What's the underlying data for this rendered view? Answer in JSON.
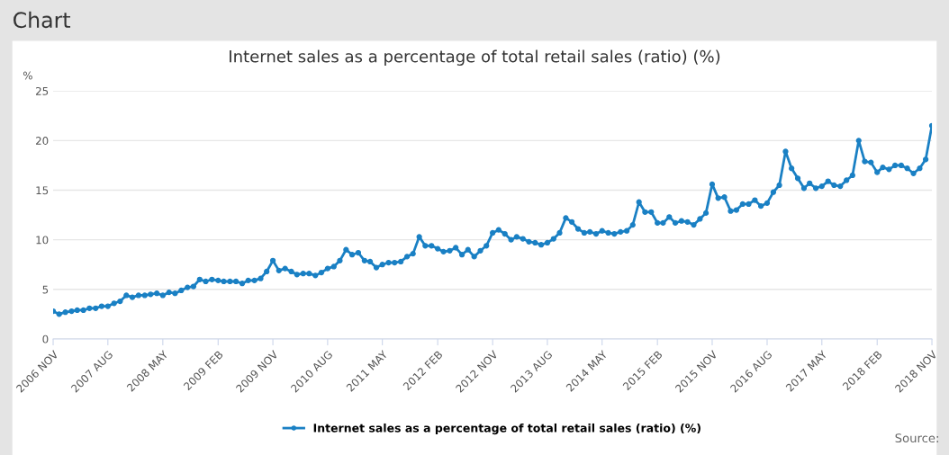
{
  "chart_data": {
    "type": "line",
    "title": "Internet sales as a percentage of total retail sales (ratio) (%)",
    "ylabel": "%",
    "annotations": [
      "Chart",
      "Source:"
    ],
    "x": [
      "2006-11",
      "2006-12",
      "2007-01",
      "2007-02",
      "2007-03",
      "2007-04",
      "2007-05",
      "2007-06",
      "2007-07",
      "2007-08",
      "2007-09",
      "2007-10",
      "2007-11",
      "2007-12",
      "2008-01",
      "2008-02",
      "2008-03",
      "2008-04",
      "2008-05",
      "2008-06",
      "2008-07",
      "2008-08",
      "2008-09",
      "2008-10",
      "2008-11",
      "2008-12",
      "2009-01",
      "2009-02",
      "2009-03",
      "2009-04",
      "2009-05",
      "2009-06",
      "2009-07",
      "2009-08",
      "2009-09",
      "2009-10",
      "2009-11",
      "2009-12",
      "2010-01",
      "2010-02",
      "2010-03",
      "2010-04",
      "2010-05",
      "2010-06",
      "2010-07",
      "2010-08",
      "2010-09",
      "2010-10",
      "2010-11",
      "2010-12",
      "2011-01",
      "2011-02",
      "2011-03",
      "2011-04",
      "2011-05",
      "2011-06",
      "2011-07",
      "2011-08",
      "2011-09",
      "2011-10",
      "2011-11",
      "2011-12",
      "2012-01",
      "2012-02",
      "2012-03",
      "2012-04",
      "2012-05",
      "2012-06",
      "2012-07",
      "2012-08",
      "2012-09",
      "2012-10",
      "2012-11",
      "2012-12",
      "2013-01",
      "2013-02",
      "2013-03",
      "2013-04",
      "2013-05",
      "2013-06",
      "2013-07",
      "2013-08",
      "2013-09",
      "2013-10",
      "2013-11",
      "2013-12",
      "2014-01",
      "2014-02",
      "2014-03",
      "2014-04",
      "2014-05",
      "2014-06",
      "2014-07",
      "2014-08",
      "2014-09",
      "2014-10",
      "2014-11",
      "2014-12",
      "2015-01",
      "2015-02",
      "2015-03",
      "2015-04",
      "2015-05",
      "2015-06",
      "2015-07",
      "2015-08",
      "2015-09",
      "2015-10",
      "2015-11",
      "2015-12",
      "2016-01",
      "2016-02",
      "2016-03",
      "2016-04",
      "2016-05",
      "2016-06",
      "2016-07",
      "2016-08",
      "2016-09",
      "2016-10",
      "2016-11",
      "2016-12",
      "2017-01",
      "2017-02",
      "2017-03",
      "2017-04",
      "2017-05",
      "2017-06",
      "2017-07",
      "2017-08",
      "2017-09",
      "2017-10",
      "2017-11",
      "2017-12",
      "2018-01",
      "2018-02",
      "2018-03",
      "2018-04",
      "2018-05",
      "2018-06",
      "2018-07",
      "2018-08",
      "2018-09",
      "2018-10",
      "2018-11"
    ],
    "series": [
      {
        "name": "Internet sales as a percentage of total retail sales (ratio) (%)",
        "color": "#1a80c4",
        "values": [
          2.8,
          2.5,
          2.7,
          2.8,
          2.9,
          2.9,
          3.1,
          3.1,
          3.3,
          3.3,
          3.6,
          3.8,
          4.4,
          4.2,
          4.4,
          4.4,
          4.5,
          4.6,
          4.4,
          4.7,
          4.6,
          4.9,
          5.2,
          5.3,
          6.0,
          5.8,
          6.0,
          5.9,
          5.8,
          5.8,
          5.8,
          5.6,
          5.9,
          5.9,
          6.1,
          6.8,
          7.9,
          6.9,
          7.1,
          6.8,
          6.5,
          6.6,
          6.6,
          6.4,
          6.7,
          7.1,
          7.3,
          7.9,
          9.0,
          8.5,
          8.7,
          7.9,
          7.8,
          7.2,
          7.5,
          7.7,
          7.7,
          7.8,
          8.3,
          8.6,
          10.3,
          9.4,
          9.4,
          9.1,
          8.8,
          8.9,
          9.2,
          8.5,
          9.0,
          8.3,
          8.9,
          9.4,
          10.7,
          11.0,
          10.6,
          10.0,
          10.3,
          10.1,
          9.8,
          9.7,
          9.5,
          9.7,
          10.1,
          10.7,
          12.2,
          11.8,
          11.1,
          10.7,
          10.8,
          10.6,
          10.9,
          10.7,
          10.6,
          10.8,
          10.9,
          11.5,
          13.8,
          12.8,
          12.8,
          11.7,
          11.7,
          12.3,
          11.7,
          11.9,
          11.8,
          11.5,
          12.1,
          12.7,
          15.6,
          14.2,
          14.3,
          12.9,
          13.0,
          13.6,
          13.6,
          14.0,
          13.4,
          13.7,
          14.8,
          15.5,
          18.9,
          17.2,
          16.2,
          15.2,
          15.7,
          15.2,
          15.4,
          15.9,
          15.5,
          15.4,
          16.0,
          16.5,
          20.0,
          17.9,
          17.8,
          16.8,
          17.3,
          17.1,
          17.5,
          17.5,
          17.2,
          16.7,
          17.2,
          18.1,
          21.5
        ]
      }
    ],
    "xlim": [
      "2006-11",
      "2018-11"
    ],
    "xticks": [
      {
        "value": "2006-11",
        "label": "2006 NOV"
      },
      {
        "value": "2007-08",
        "label": "2007 AUG"
      },
      {
        "value": "2008-05",
        "label": "2008 MAY"
      },
      {
        "value": "2009-02",
        "label": "2009 FEB"
      },
      {
        "value": "2009-11",
        "label": "2009 NOV"
      },
      {
        "value": "2010-08",
        "label": "2010 AUG"
      },
      {
        "value": "2011-05",
        "label": "2011 MAY"
      },
      {
        "value": "2012-02",
        "label": "2012 FEB"
      },
      {
        "value": "2012-11",
        "label": "2012 NOV"
      },
      {
        "value": "2013-08",
        "label": "2013 AUG"
      },
      {
        "value": "2014-05",
        "label": "2014 MAY"
      },
      {
        "value": "2015-02",
        "label": "2015 FEB"
      },
      {
        "value": "2015-11",
        "label": "2015 NOV"
      },
      {
        "value": "2016-08",
        "label": "2016 AUG"
      },
      {
        "value": "2017-05",
        "label": "2017 MAY"
      },
      {
        "value": "2018-02",
        "label": "2018 FEB"
      },
      {
        "value": "2018-11",
        "label": "2018 NOV"
      }
    ],
    "ylim": [
      0,
      25
    ],
    "yticks": [
      0,
      5,
      10,
      15,
      20,
      25
    ],
    "grid": "y",
    "legend": "bottom",
    "marker": "circle",
    "line_style": "solid"
  }
}
